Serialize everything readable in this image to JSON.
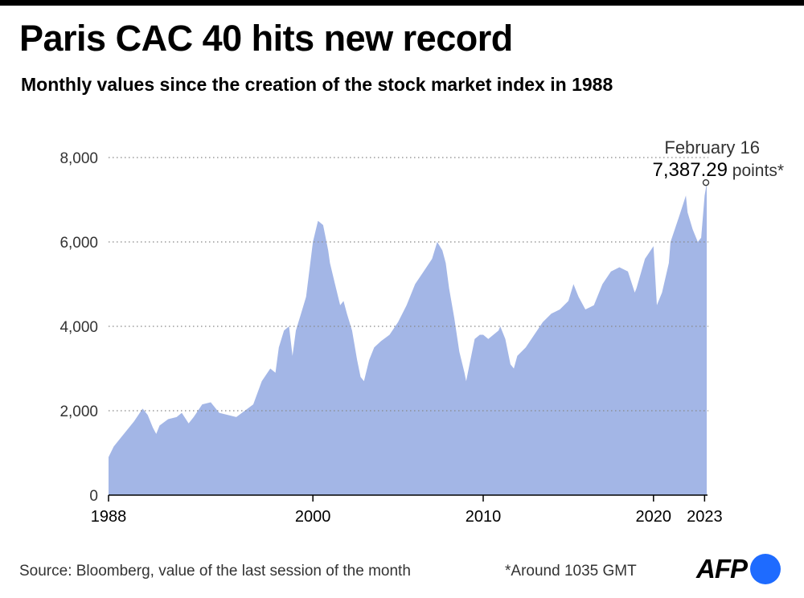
{
  "header": {
    "title": "Paris CAC 40 hits new record",
    "subtitle": "Monthly values since the creation of the stock market index in 1988"
  },
  "footer": {
    "source": "Source: Bloomberg, value of the last session of the month",
    "footnote": "*Around 1035 GMT",
    "logo_text": "AFP"
  },
  "colors": {
    "area_fill": "#a3b6e6",
    "gridline": "#888888",
    "logo_dot": "#1e6bff"
  },
  "chart_data": {
    "type": "area",
    "title": "Paris CAC 40 hits new record",
    "subtitle": "Monthly values since the creation of the stock market index in 1988",
    "xlim": [
      1988,
      2023.125
    ],
    "ylim": [
      0,
      8000
    ],
    "y_ticks": [
      0,
      2000,
      4000,
      6000,
      8000
    ],
    "y_tick_labels": [
      "0",
      "2,000",
      "4,000",
      "6,000",
      "8,000"
    ],
    "x_ticks": [
      1988,
      2000,
      2010,
      2020,
      2023
    ],
    "x_tick_labels": [
      "1988",
      "2000",
      "2010",
      "2020",
      "2023"
    ],
    "grid": "horizontal dotted",
    "series": [
      {
        "x": [
          1988,
          1988.3,
          1988.6,
          1989,
          1989.5,
          1990,
          1990.3,
          1990.6,
          1990.8,
          1991,
          1991.5,
          1992,
          1992.3,
          1992.7,
          1993,
          1993.5,
          1994,
          1994.5,
          1995,
          1995.5,
          1996,
          1996.5,
          1997,
          1997.5,
          1997.8,
          1998,
          1998.3,
          1998.6,
          1998.8,
          1999,
          1999.3,
          1999.6,
          2000,
          2000.3,
          2000.6,
          2000.9,
          2001,
          2001.3,
          2001.6,
          2001.8,
          2002,
          2002.3,
          2002.6,
          2002.8,
          2003,
          2003.3,
          2003.6,
          2004,
          2004.5,
          2005,
          2005.5,
          2006,
          2006.5,
          2007,
          2007.3,
          2007.6,
          2007.8,
          2008,
          2008.3,
          2008.6,
          2008.9,
          2009,
          2009.2,
          2009.5,
          2009.8,
          2010,
          2010.3,
          2010.6,
          2010.9,
          2011,
          2011.3,
          2011.6,
          2011.8,
          2012,
          2012.5,
          2013,
          2013.5,
          2014,
          2014.5,
          2015,
          2015.3,
          2015.6,
          2016,
          2016.5,
          2017,
          2017.5,
          2018,
          2018.5,
          2018.9,
          2019,
          2019.5,
          2020,
          2020.2,
          2020.5,
          2020.9,
          2021,
          2021.5,
          2021.9,
          2022,
          2022.3,
          2022.6,
          2022.8,
          2023,
          2023.125
        ],
        "y": [
          900,
          1150,
          1300,
          1500,
          1750,
          2050,
          1900,
          1600,
          1450,
          1650,
          1800,
          1850,
          1950,
          1700,
          1850,
          2150,
          2200,
          1950,
          1900,
          1850,
          2000,
          2150,
          2700,
          3000,
          2900,
          3500,
          3900,
          4000,
          3300,
          3900,
          4300,
          4700,
          6000,
          6500,
          6400,
          5800,
          5500,
          5000,
          4500,
          4600,
          4300,
          3900,
          3200,
          2800,
          2700,
          3200,
          3500,
          3650,
          3800,
          4100,
          4500,
          5000,
          5300,
          5600,
          6000,
          5800,
          5500,
          4900,
          4200,
          3400,
          2900,
          2700,
          3100,
          3700,
          3800,
          3800,
          3700,
          3800,
          3900,
          4000,
          3700,
          3100,
          3000,
          3300,
          3500,
          3800,
          4100,
          4300,
          4400,
          4600,
          5000,
          4700,
          4400,
          4500,
          5000,
          5300,
          5400,
          5300,
          4800,
          4900,
          5600,
          5900,
          4500,
          4800,
          5500,
          6000,
          6600,
          7100,
          6700,
          6300,
          6000,
          6100,
          7100,
          7387.29
        ]
      }
    ],
    "annotations": [
      {
        "text": "February 16",
        "x": 2023.125,
        "y": 7387.29
      },
      {
        "value_text": "7,387.29",
        "unit_text": " points*",
        "x": 2023.125,
        "y": 7387.29
      }
    ]
  }
}
